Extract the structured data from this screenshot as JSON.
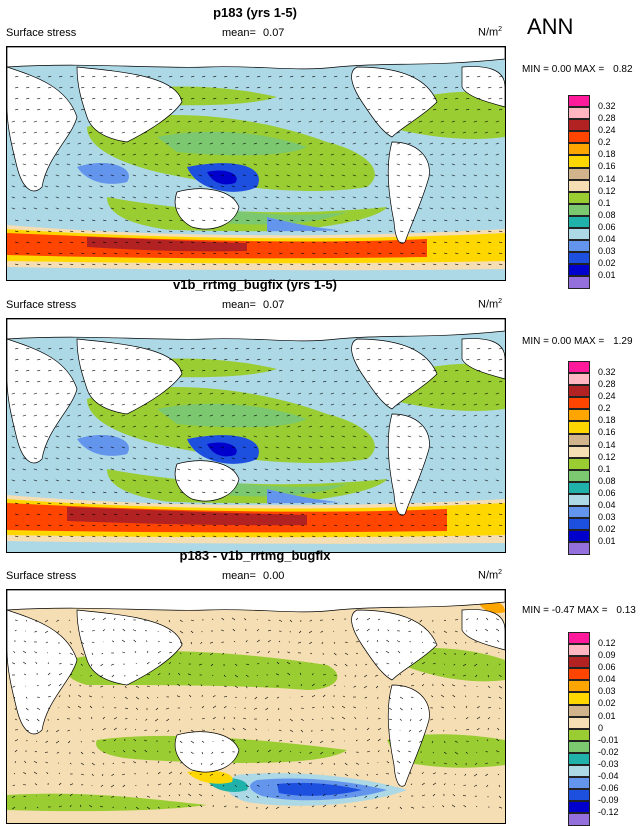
{
  "season": "ANN",
  "panels": [
    {
      "title": "p183 (yrs 1-5)",
      "variable": "Surface stress",
      "mean_label": "mean=",
      "mean": "0.07",
      "units_base": "N/m",
      "units_exp": "2",
      "min_label": "MIN =",
      "min": "0.00",
      "max_label": "MAX =",
      "max": "0.82",
      "levels": [
        "0.32",
        "0.28",
        "0.24",
        "0.2",
        "0.18",
        "0.16",
        "0.14",
        "0.12",
        "0.1",
        "0.08",
        "0.06",
        "0.04",
        "0.03",
        "0.02",
        "0.01"
      ],
      "colors": [
        "#ff1a9c",
        "#ffb6c1",
        "#b22222",
        "#ff4500",
        "#ffa500",
        "#ffd700",
        "#d2b48c",
        "#f5deb3",
        "#9acd32",
        "#7cc870",
        "#20b2aa",
        "#add8e6",
        "#6495ed",
        "#1e50e0",
        "#0000cd",
        "#9370db"
      ]
    },
    {
      "title": "v1b_rrtmg_bugfix (yrs 1-5)",
      "variable": "Surface stress",
      "mean_label": "mean=",
      "mean": "0.07",
      "units_base": "N/m",
      "units_exp": "2",
      "min_label": "MIN =",
      "min": "0.00",
      "max_label": "MAX =",
      "max": "1.29",
      "levels": [
        "0.32",
        "0.28",
        "0.24",
        "0.2",
        "0.18",
        "0.16",
        "0.14",
        "0.12",
        "0.1",
        "0.08",
        "0.06",
        "0.04",
        "0.03",
        "0.02",
        "0.01"
      ],
      "colors": [
        "#ff1a9c",
        "#ffb6c1",
        "#b22222",
        "#ff4500",
        "#ffa500",
        "#ffd700",
        "#d2b48c",
        "#f5deb3",
        "#9acd32",
        "#7cc870",
        "#20b2aa",
        "#add8e6",
        "#6495ed",
        "#1e50e0",
        "#0000cd",
        "#9370db"
      ]
    },
    {
      "title": "p183 - v1b_rrtmg_bugfix",
      "variable": "Surface stress",
      "mean_label": "mean=",
      "mean": "0.00",
      "units_base": "N/m",
      "units_exp": "2",
      "min_label": "MIN =",
      "min": "-0.47",
      "max_label": "MAX =",
      "max": "0.13",
      "levels": [
        "0.12",
        "0.09",
        "0.06",
        "0.04",
        "0.03",
        "0.02",
        "0.01",
        "0",
        "-0.01",
        "-0.02",
        "-0.03",
        "-0.04",
        "-0.06",
        "-0.09",
        "-0.12"
      ],
      "colors": [
        "#ff1a9c",
        "#ffb6c1",
        "#b22222",
        "#ff4500",
        "#ffa500",
        "#ffd700",
        "#d2b48c",
        "#f5deb3",
        "#9acd32",
        "#7cc870",
        "#20b2aa",
        "#add8e6",
        "#6495ed",
        "#1e50e0",
        "#0000cd",
        "#9370db"
      ]
    }
  ]
}
